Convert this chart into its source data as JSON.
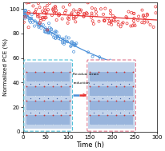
{
  "xlabel": "Time (h)",
  "ylabel": "Normalized PCE (%)",
  "xlim": [
    0,
    300
  ],
  "ylim": [
    0,
    105
  ],
  "xticks": [
    0,
    50,
    100,
    150,
    200,
    250,
    300
  ],
  "yticks": [
    0,
    20,
    40,
    60,
    80,
    100
  ],
  "red_color": "#e83030",
  "blue_color": "#4a90d9",
  "legend_text1": "Residual strain",
  "legend_arrow_left": "#4a90d9",
  "legend_arrow_right": "#e83030",
  "legend_text2": "reduction",
  "blue_box_edge": "#50c0d8",
  "red_box_edge": "#e07890",
  "crystal_bg": "#b8cce8",
  "crystal_layer": "#8aaad8",
  "crystal_red_atom": "#cc3333",
  "crystal_blue_atom": "#4466aa",
  "crystal_white_atom": "#ffffff"
}
